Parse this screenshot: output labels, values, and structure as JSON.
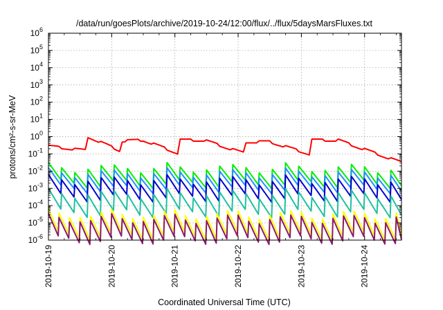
{
  "chart_data": {
    "type": "line",
    "title": "/data/run/goesPlots/archive/2019-10-24/12:00/flux/../flux/5daysMarsFluxes.txt",
    "xlabel": "Coordinated Universal Time (UTC)",
    "ylabel": "protons/cm²-s-sr-MeV",
    "y_scale": "log",
    "ylim_exponent": [
      -6,
      6
    ],
    "y_tick_labels": [
      "10^-6",
      "10^-5",
      "10^-4",
      "10^-3",
      "10^-2",
      "10^-1",
      "10^0",
      "10^1",
      "10^2",
      "10^3",
      "10^4",
      "10^5",
      "10^6"
    ],
    "x_range_days": [
      "2019-10-19",
      "2019-10-24T14:00"
    ],
    "x_tick_labels": [
      "2019-10-19",
      "2019-10-20",
      "2019-10-21",
      "2019-10-22",
      "2019-10-23",
      "2019-10-24"
    ],
    "grid": true,
    "legend": "none",
    "series": [
      {
        "color": "#ff0000",
        "pattern": "sawtooth",
        "period_h": 5,
        "base_exp": -0.65,
        "amp": 0.25,
        "envelope": [
          [
            0,
            -0.55
          ],
          [
            14,
            -0.8
          ],
          [
            15,
            0.0
          ],
          [
            27,
            -0.8
          ],
          [
            28,
            -0.25
          ],
          [
            36,
            -0.2
          ],
          [
            49,
            -0.95
          ],
          [
            50,
            -0.2
          ],
          [
            59,
            -0.2
          ],
          [
            74,
            -0.95
          ],
          [
            75,
            -0.3
          ],
          [
            84,
            -0.3
          ],
          [
            99,
            -1.0
          ],
          [
            100,
            -0.2
          ],
          [
            110,
            -0.2
          ],
          [
            134,
            -1.5
          ]
        ]
      },
      {
        "color": "#00ee00",
        "pattern": "sawtooth",
        "period_h": 5,
        "base_exp": -2.3,
        "amp": 0.45
      },
      {
        "color": "#1e90ff",
        "pattern": "sawtooth",
        "period_h": 5,
        "base_exp": -2.6,
        "amp": 0.45
      },
      {
        "color": "#0000cd",
        "pattern": "sawtooth",
        "period_h": 5,
        "base_exp": -3.05,
        "amp": 0.5
      },
      {
        "color": "#20c0a0",
        "pattern": "sawtooth",
        "period_h": 5,
        "base_exp": -3.9,
        "amp": 0.55
      },
      {
        "color": "#ffff00",
        "pattern": "sawtooth",
        "period_h": 4,
        "base_exp": -5.15,
        "amp": 0.6
      },
      {
        "color": "#8b1a6b",
        "pattern": "sawtooth",
        "period_h": 4,
        "base_exp": -5.4,
        "amp": 0.6
      }
    ]
  }
}
